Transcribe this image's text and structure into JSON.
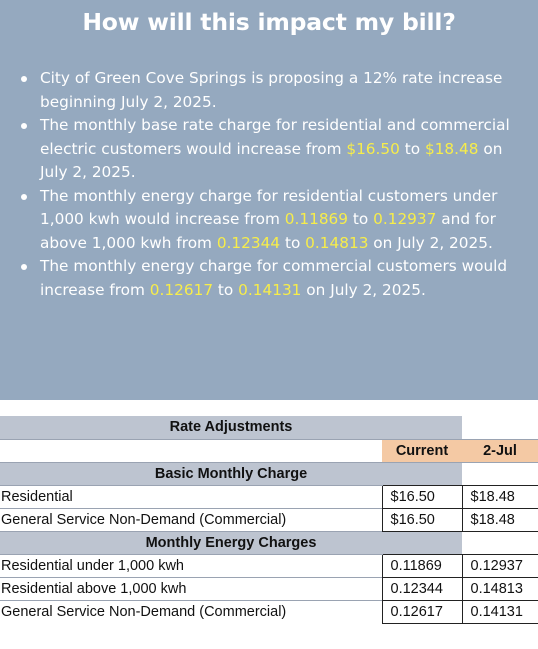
{
  "header": {
    "title": "How will this impact my bill?"
  },
  "bullets": [
    [
      {
        "t": "City of Green Cove Springs is proposing a 12% rate increase beginning July 2, 2025.",
        "hl": false
      }
    ],
    [
      {
        "t": "The monthly base rate charge for residential and commercial electric customers would increase from ",
        "hl": false
      },
      {
        "t": "$16.50",
        "hl": true
      },
      {
        "t": " to ",
        "hl": false
      },
      {
        "t": "$18.48",
        "hl": true
      },
      {
        "t": " on July 2, 2025.",
        "hl": false
      }
    ],
    [
      {
        "t": "The monthly energy charge for residential customers under 1,000 kwh would increase from ",
        "hl": false
      },
      {
        "t": "0.11869",
        "hl": true
      },
      {
        "t": " to ",
        "hl": false
      },
      {
        "t": "0.12937",
        "hl": true
      },
      {
        "t": " and for above 1,000 kwh from ",
        "hl": false
      },
      {
        "t": "0.12344",
        "hl": true
      },
      {
        "t": " to ",
        "hl": false
      },
      {
        "t": "0.14813",
        "hl": true
      },
      {
        "t": " on July 2, 2025.",
        "hl": false
      }
    ],
    [
      {
        "t": "The monthly energy charge for commercial customers would increase from ",
        "hl": false
      },
      {
        "t": "0.12617",
        "hl": true
      },
      {
        "t": " to  ",
        "hl": false
      },
      {
        "t": "0.14131",
        "hl": true
      },
      {
        "t": " on July 2, 2025.",
        "hl": false
      }
    ]
  ],
  "table": {
    "title": "Rate Adjustments",
    "col_current": "Current",
    "col_new": "2-Jul",
    "section_basic": "Basic Monthly Charge",
    "basic_rows": [
      {
        "label": "Residential",
        "current": "$16.50",
        "new": "$18.48"
      },
      {
        "label": "General Service Non-Demand (Commercial)",
        "current": "$16.50",
        "new": "$18.48"
      }
    ],
    "section_energy": "Monthly Energy Charges",
    "energy_rows": [
      {
        "label": "Residential under 1,000 kwh",
        "current": "0.11869",
        "new": "0.12937"
      },
      {
        "label": "Residential above 1,000 kwh",
        "current": "0.12344",
        "new": "0.14813"
      },
      {
        "label": "General Service Non-Demand (Commercial)",
        "current": "0.12617",
        "new": "0.14131"
      }
    ]
  },
  "colors": {
    "panel_bg": "#95a9bf",
    "highlight": "#f7ed4a",
    "table_header_bg": "#bdc4d0",
    "column_header_bg": "#f4c9a4"
  }
}
